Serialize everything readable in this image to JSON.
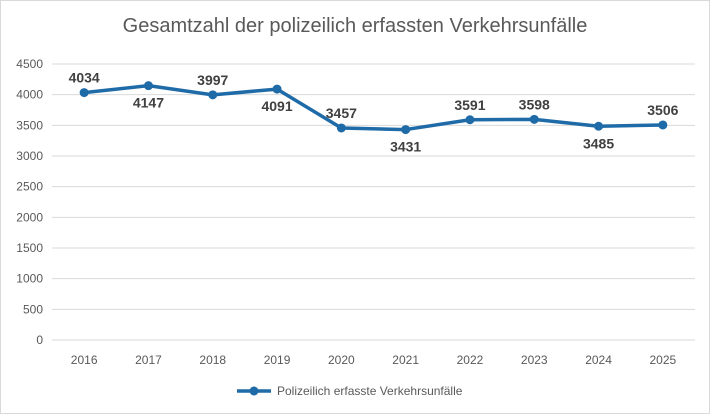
{
  "chart_data": {
    "type": "line",
    "title": "Gesamtzahl der polizeilich erfassten Verkehrsunfälle",
    "categories": [
      "2016",
      "2017",
      "2018",
      "2019",
      "2020",
      "2021",
      "2022",
      "2023",
      "2024",
      "2025"
    ],
    "series": [
      {
        "name": "Polizeilich erfasste Verkehrsunfälle",
        "values": [
          4034,
          4147,
          3997,
          4091,
          3457,
          3431,
          3591,
          3598,
          3485,
          3506
        ],
        "color": "#1f6ba8"
      }
    ],
    "ylim": [
      0,
      4500
    ],
    "yticks": [
      0,
      500,
      1000,
      1500,
      2000,
      2500,
      3000,
      3500,
      4000,
      4500
    ],
    "grid": true,
    "legend": "bottom",
    "data_label_position": [
      "above",
      "below",
      "above",
      "below",
      "above",
      "below",
      "above",
      "above",
      "below",
      "above"
    ]
  }
}
